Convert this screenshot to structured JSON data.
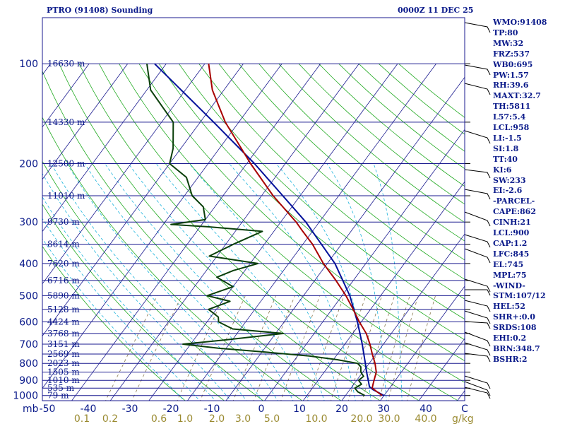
{
  "header": {
    "station": "PTRO (91408) Sounding",
    "time": "0000Z 11 DEC 25"
  },
  "chart_data": {
    "type": "line",
    "pressure_axis_label": "mb",
    "mixing_ratio_unit": "g/kg",
    "pressure_levels": [
      {
        "p": 100,
        "label": "100",
        "height": "16630 m"
      },
      {
        "p": 150,
        "label": "",
        "height": "14330 m"
      },
      {
        "p": 200,
        "label": "200",
        "height": "12500 m"
      },
      {
        "p": 250,
        "label": "",
        "height": "11010 m"
      },
      {
        "p": 300,
        "label": "300",
        "height": "9730 m"
      },
      {
        "p": 350,
        "label": "",
        "height": "8614 m"
      },
      {
        "p": 400,
        "label": "400",
        "height": "7620 m"
      },
      {
        "p": 450,
        "label": "",
        "height": "6716 m"
      },
      {
        "p": 500,
        "label": "500",
        "height": "5890 m"
      },
      {
        "p": 550,
        "label": "",
        "height": "5128 m"
      },
      {
        "p": 600,
        "label": "600",
        "height": "4424 m"
      },
      {
        "p": 650,
        "label": "",
        "height": "3768 m"
      },
      {
        "p": 700,
        "label": "700",
        "height": "3151 m"
      },
      {
        "p": 750,
        "label": "",
        "height": "2569 m"
      },
      {
        "p": 800,
        "label": "800",
        "height": "2023 m"
      },
      {
        "p": 850,
        "label": "",
        "height": "1505 m"
      },
      {
        "p": 900,
        "label": "900",
        "height": "1010 m"
      },
      {
        "p": 950,
        "label": "",
        "height": "535 m"
      },
      {
        "p": 1000,
        "label": "1000",
        "height": "79 m"
      }
    ],
    "temperature_ticks": [
      "-50",
      "-40",
      "-30",
      "-20",
      "-10",
      "0",
      "10",
      "20",
      "30",
      "40",
      "C"
    ],
    "mixing_ratio_ticks": [
      "0.1",
      "0.2",
      "0.6",
      "1.0",
      "2.0",
      "3.0",
      "5.0",
      "10.0",
      "20.0",
      "30.0",
      "40.0"
    ],
    "temperature_profile": [
      {
        "p": 1000,
        "t": 29.5
      },
      {
        "p": 975,
        "t": 27.5
      },
      {
        "p": 950,
        "t": 25.5
      },
      {
        "p": 925,
        "t": 25
      },
      {
        "p": 900,
        "t": 24.5
      },
      {
        "p": 850,
        "t": 23.5
      },
      {
        "p": 800,
        "t": 21.5
      },
      {
        "p": 750,
        "t": 19
      },
      {
        "p": 700,
        "t": 16.5
      },
      {
        "p": 650,
        "t": 13.5
      },
      {
        "p": 600,
        "t": 9.5
      },
      {
        "p": 550,
        "t": 5.5
      },
      {
        "p": 500,
        "t": 1
      },
      {
        "p": 450,
        "t": -4.5
      },
      {
        "p": 400,
        "t": -11
      },
      {
        "p": 350,
        "t": -17.5
      },
      {
        "p": 320,
        "t": -22.5
      },
      {
        "p": 300,
        "t": -26
      },
      {
        "p": 250,
        "t": -37
      },
      {
        "p": 200,
        "t": -49
      },
      {
        "p": 150,
        "t": -63.5
      },
      {
        "p": 120,
        "t": -73
      },
      {
        "p": 100,
        "t": -79
      }
    ],
    "dewpoint_profile": [
      {
        "p": 1000,
        "t": 25
      },
      {
        "p": 975,
        "t": 22.5
      },
      {
        "p": 950,
        "t": 21
      },
      {
        "p": 925,
        "t": 22
      },
      {
        "p": 900,
        "t": 20.5
      },
      {
        "p": 875,
        "t": 21
      },
      {
        "p": 850,
        "t": 19.5
      },
      {
        "p": 820,
        "t": 18.5
      },
      {
        "p": 800,
        "t": 17
      },
      {
        "p": 780,
        "t": 11
      },
      {
        "p": 760,
        "t": 3
      },
      {
        "p": 740,
        "t": -9
      },
      {
        "p": 720,
        "t": -22
      },
      {
        "p": 700,
        "t": -32
      },
      {
        "p": 680,
        "t": -22
      },
      {
        "p": 650,
        "t": -8
      },
      {
        "p": 630,
        "t": -22
      },
      {
        "p": 600,
        "t": -27
      },
      {
        "p": 580,
        "t": -28
      },
      {
        "p": 550,
        "t": -32
      },
      {
        "p": 520,
        "t": -28
      },
      {
        "p": 500,
        "t": -35
      },
      {
        "p": 470,
        "t": -30
      },
      {
        "p": 440,
        "t": -36
      },
      {
        "p": 420,
        "t": -33
      },
      {
        "p": 400,
        "t": -28
      },
      {
        "p": 380,
        "t": -42
      },
      {
        "p": 350,
        "t": -38
      },
      {
        "p": 320,
        "t": -33
      },
      {
        "p": 310,
        "t": -48
      },
      {
        "p": 305,
        "t": -58
      },
      {
        "p": 295,
        "t": -50
      },
      {
        "p": 270,
        "t": -53
      },
      {
        "p": 250,
        "t": -58
      },
      {
        "p": 220,
        "t": -63
      },
      {
        "p": 200,
        "t": -70
      },
      {
        "p": 180,
        "t": -72
      },
      {
        "p": 150,
        "t": -77
      },
      {
        "p": 120,
        "t": -89
      },
      {
        "p": 100,
        "t": -95
      }
    ],
    "parcel_profile": [
      {
        "p": 1000,
        "t": 30
      },
      {
        "p": 960,
        "t": 26
      },
      {
        "p": 940,
        "t": 24.5
      },
      {
        "p": 900,
        "t": 23
      },
      {
        "p": 850,
        "t": 21
      },
      {
        "p": 800,
        "t": 19
      },
      {
        "p": 700,
        "t": 14.5
      },
      {
        "p": 600,
        "t": 9
      },
      {
        "p": 500,
        "t": 2
      },
      {
        "p": 400,
        "t": -8
      },
      {
        "p": 300,
        "t": -23.5
      },
      {
        "p": 250,
        "t": -34.5
      },
      {
        "p": 200,
        "t": -48
      },
      {
        "p": 150,
        "t": -66.5
      },
      {
        "p": 100,
        "t": -93
      }
    ],
    "indices": [
      "WMO:91408",
      "TP:80",
      "MW:32",
      "FRZ:537",
      "WB0:695",
      "PW:1.57",
      "RH:39.6",
      "MAXT:32.7",
      "TH:5811",
      "L57:5.4",
      "LCL:958",
      "LI:-1.5",
      "SI:1.8",
      "TT:40",
      "KI:6",
      "SW:233",
      "EI:-2.6",
      "-PARCEL-",
      "CAPE:862",
      "CINH:21",
      "LCL:900",
      "CAP:1.2",
      "LFC:845",
      "EL:745",
      "MPL:75",
      "-WIND-",
      "STM:107/12",
      "HEL:52",
      "SHR+:0.0",
      "SRDS:108",
      "EHI:0.2",
      "BRN:348.7",
      "BSHR:2"
    ],
    "colors": {
      "temperature": "#a80000",
      "dewpoint": "#0a3f0a",
      "parcel": "#00109a",
      "grid": "#1a1a8f",
      "isotherm": "#1a1a8f",
      "dry_adiabat": "#22aa22",
      "moist_adiabat": "#1eb4dc",
      "mixing_ratio": "#8a7a50",
      "text": "#0a1a8a",
      "tick_mr": "#9a8a30"
    }
  }
}
